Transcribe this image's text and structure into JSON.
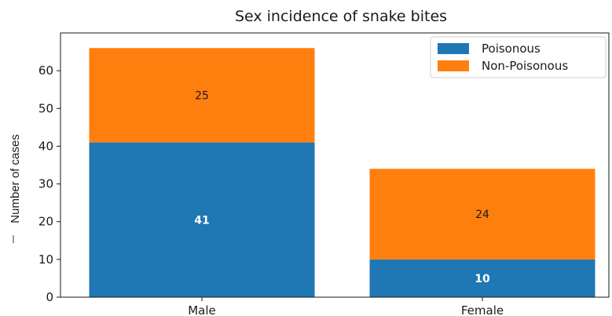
{
  "chart_data": {
    "type": "bar",
    "stacked": true,
    "title": "Sex incidence of snake bites",
    "xlabel": "",
    "ylabel": "Number of cases",
    "categories": [
      "Male",
      "Female"
    ],
    "series": [
      {
        "name": "Poisonous",
        "values": [
          41,
          10
        ],
        "color": "#1f77b4",
        "label_color": "#ffffff"
      },
      {
        "name": "Non-Poisonous",
        "values": [
          25,
          24
        ],
        "color": "#ff7f0e",
        "label_color": "#1a1a1a"
      }
    ],
    "ylim": [
      0,
      70
    ],
    "yticks": [
      0,
      10,
      20,
      30,
      40,
      50,
      60
    ],
    "grid": false,
    "legend_position": "top-right"
  }
}
